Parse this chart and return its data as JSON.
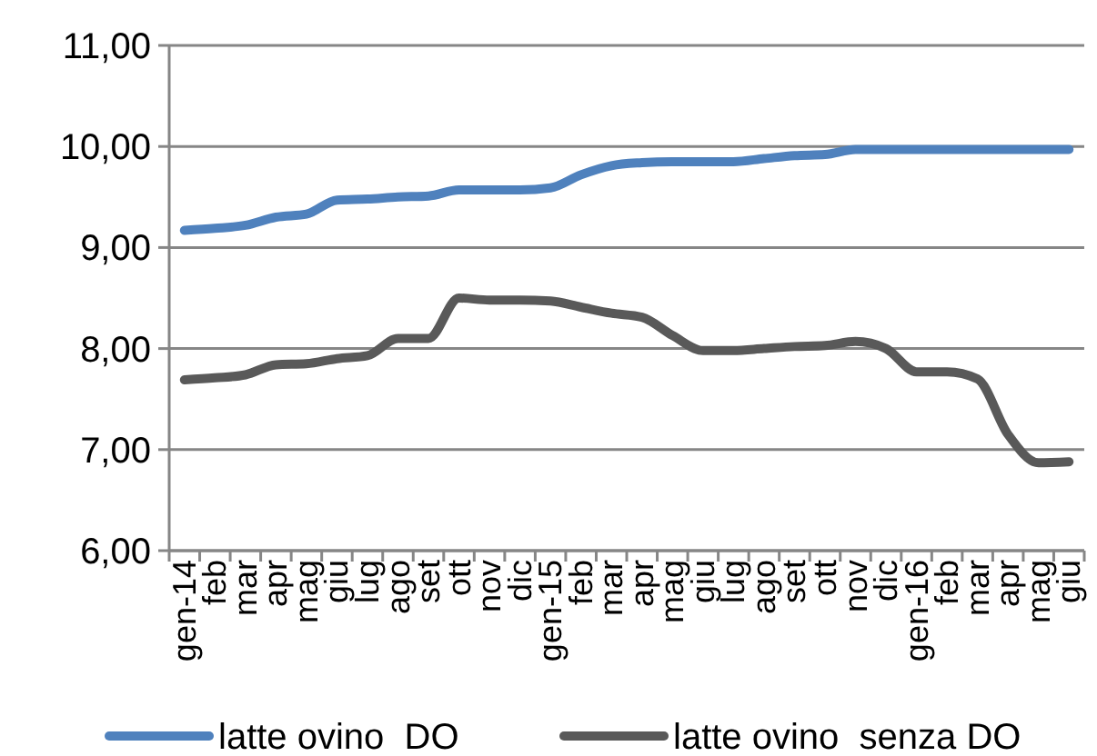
{
  "chart_data": {
    "type": "line",
    "categories": [
      "gen-14",
      "feb",
      "mar",
      "apr",
      "mag",
      "giu",
      "lug",
      "ago",
      "set",
      "ott",
      "nov",
      "dic",
      "gen-15",
      "feb",
      "mar",
      "apr",
      "mag",
      "giu",
      "lug",
      "ago",
      "set",
      "ott",
      "nov",
      "dic",
      "gen-16",
      "feb",
      "mar",
      "apr",
      "mag",
      "giu"
    ],
    "series": [
      {
        "name": "latte ovino  DO",
        "color": "#4f81bd",
        "values": [
          9.17,
          9.19,
          9.22,
          9.3,
          9.33,
          9.47,
          9.48,
          9.5,
          9.51,
          9.57,
          9.57,
          9.57,
          9.59,
          9.72,
          9.81,
          9.84,
          9.85,
          9.85,
          9.85,
          9.88,
          9.91,
          9.92,
          9.97,
          9.97,
          9.97,
          9.97,
          9.97,
          9.97,
          9.97,
          9.97
        ]
      },
      {
        "name": "latte ovino  senza DO",
        "color": "#595959",
        "values": [
          7.69,
          7.71,
          7.74,
          7.84,
          7.85,
          7.9,
          7.93,
          8.1,
          8.1,
          8.5,
          8.48,
          8.48,
          8.47,
          8.41,
          8.35,
          8.31,
          8.13,
          7.98,
          7.98,
          8.0,
          8.02,
          8.03,
          8.07,
          8.0,
          7.77,
          7.77,
          7.7,
          7.15,
          6.87,
          6.88
        ]
      }
    ],
    "ylim": [
      6,
      11
    ],
    "yticks": [
      {
        "value": 6,
        "label": "6,00"
      },
      {
        "value": 7,
        "label": "7,00"
      },
      {
        "value": 8,
        "label": "8,00"
      },
      {
        "value": 9,
        "label": "9,00"
      },
      {
        "value": 10,
        "label": "10,00"
      },
      {
        "value": 11,
        "label": "11,00"
      }
    ],
    "grid": "y",
    "legend": "bottom",
    "marker": "none",
    "line_style": "solid"
  }
}
